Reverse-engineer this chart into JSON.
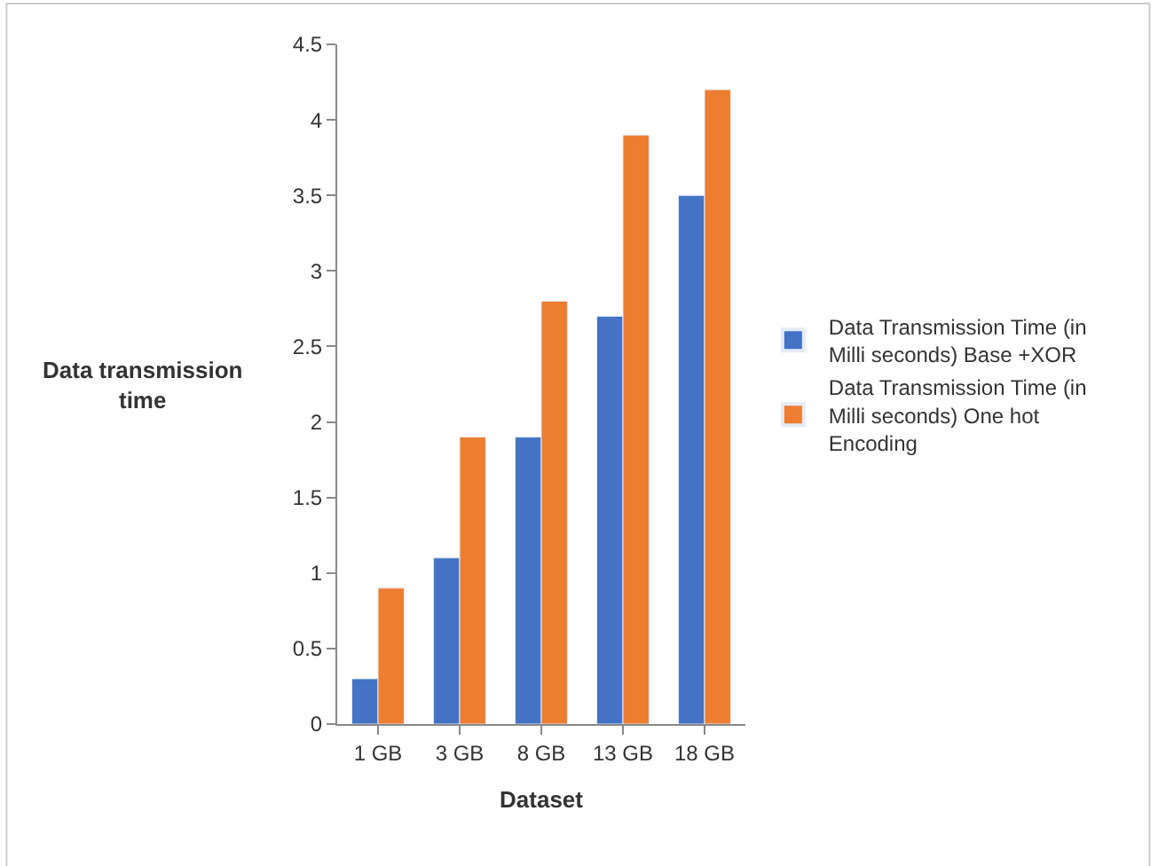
{
  "chart_data": {
    "type": "bar",
    "categories": [
      "1 GB",
      "3 GB",
      "8 GB",
      "13 GB",
      "18 GB"
    ],
    "series": [
      {
        "name": "Data Transmission Time (in Milli seconds) Base +XOR",
        "color": "#4472c4",
        "values": [
          0.3,
          1.1,
          1.9,
          2.7,
          3.5
        ]
      },
      {
        "name": "Data Transmission Time (in Milli seconds) One hot Encoding",
        "color": "#ed7d31",
        "values": [
          0.9,
          1.9,
          2.8,
          3.9,
          4.2
        ]
      }
    ],
    "xlabel": "Dataset",
    "ylabel": "Data transmission time",
    "ylim": [
      0,
      4.5
    ],
    "yticks": [
      0,
      0.5,
      1,
      1.5,
      2,
      2.5,
      3,
      3.5,
      4,
      4.5
    ],
    "legend": "right"
  }
}
